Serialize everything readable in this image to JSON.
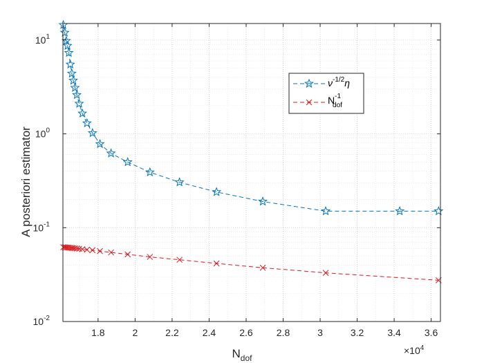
{
  "chart_data": {
    "type": "line",
    "xlabel": "N",
    "xlabel_sub": "dof",
    "ylabel": "A posteriori estimator",
    "x_scale": "linear",
    "y_scale": "log",
    "xlim": [
      16100,
      36500
    ],
    "ylim": [
      0.01,
      15
    ],
    "x_exponent_label": "×10",
    "x_exponent_power": "4",
    "x_ticks": [
      18000,
      20000,
      22000,
      24000,
      26000,
      28000,
      30000,
      32000,
      34000,
      36000
    ],
    "x_tick_labels": [
      "1.8",
      "2",
      "2.2",
      "2.4",
      "2.6",
      "2.8",
      "3",
      "3.2",
      "3.4",
      "3.6"
    ],
    "y_ticks": [
      {
        "value": 0.01,
        "base": "10",
        "exp": "-2"
      },
      {
        "value": 0.1,
        "base": "10",
        "exp": "-1"
      },
      {
        "value": 1,
        "base": "10",
        "exp": "0"
      },
      {
        "value": 10,
        "base": "10",
        "exp": "1"
      }
    ],
    "grid": true,
    "minor_grid": true,
    "legend_position": "upper-right",
    "series": [
      {
        "name_parts": {
          "main": "ν",
          "sup": "-1/2",
          "tail": "η"
        },
        "color": "#0072BD",
        "marker": "star",
        "line_style": "dashed",
        "x": [
          16120,
          16200,
          16280,
          16350,
          16420,
          16500,
          16580,
          16660,
          16750,
          16850,
          16980,
          17150,
          17400,
          17700,
          18100,
          18700,
          19600,
          20800,
          22400,
          24400,
          26900,
          30300,
          34300,
          36400
        ],
        "y": [
          14.5,
          12.0,
          9.8,
          8.7,
          7.3,
          5.5,
          4.4,
          3.7,
          3.1,
          2.6,
          2.1,
          1.65,
          1.3,
          1.02,
          0.78,
          0.62,
          0.5,
          0.39,
          0.305,
          0.24,
          0.19,
          0.15,
          0.15,
          0.15
        ]
      },
      {
        "name_parts": {
          "main": "N",
          "sub": "dof",
          "sup": "-1"
        },
        "color": "#D7191C",
        "marker": "x",
        "line_style": "dashed",
        "x": [
          16120,
          16200,
          16280,
          16350,
          16420,
          16500,
          16580,
          16660,
          16750,
          16850,
          16980,
          17150,
          17400,
          17700,
          18100,
          18700,
          19600,
          20800,
          22400,
          24400,
          26900,
          30300,
          36400
        ],
        "y": [
          0.062,
          0.0618,
          0.0616,
          0.0614,
          0.0612,
          0.061,
          0.0608,
          0.0606,
          0.0603,
          0.06,
          0.0596,
          0.059,
          0.0583,
          0.0575,
          0.0563,
          0.0545,
          0.052,
          0.0488,
          0.0455,
          0.0416,
          0.0374,
          0.033,
          0.0275
        ]
      }
    ]
  }
}
